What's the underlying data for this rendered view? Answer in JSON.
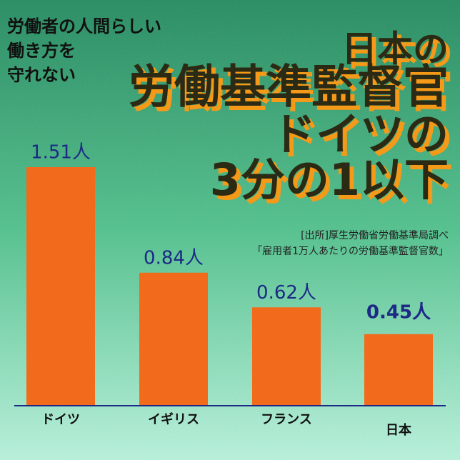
{
  "chart_data": {
    "type": "bar",
    "title": [
      "日本の",
      "労働基準監督官",
      "ドイツの",
      "3分の1以下"
    ],
    "subtitle": [
      "労働者の人間らしい",
      "働き方を",
      "守れない"
    ],
    "source": [
      "[出所]厚生労働省労働基準局調べ",
      "「雇用者1万人あたりの労働基準監督官数」"
    ],
    "categories": [
      "ドイツ",
      "イギリス",
      "フランス",
      "日本"
    ],
    "values": [
      1.51,
      0.84,
      0.62,
      0.45
    ],
    "value_labels": [
      "1.51人",
      "0.84人",
      "0.62人",
      "0.45人"
    ],
    "color": "#f26a1b"
  }
}
